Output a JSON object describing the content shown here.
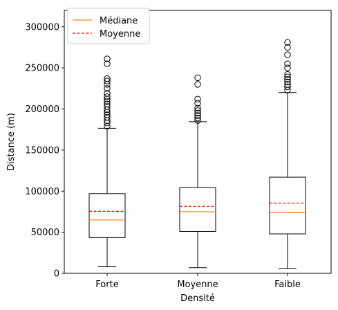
{
  "chart_data": {
    "type": "boxplot",
    "xlabel": "Densité",
    "ylabel": "Distance (m)",
    "ylim": [
      0,
      320000
    ],
    "yticks": [
      0,
      50000,
      100000,
      150000,
      200000,
      250000,
      300000
    ],
    "grid": false,
    "legend": {
      "placement": "top-left",
      "entries": [
        {
          "label": "Médiane",
          "style": "solid",
          "color": "#ff7f0e"
        },
        {
          "label": "Moyenne",
          "style": "dashed",
          "color": "#ff0000"
        }
      ]
    },
    "categories": [
      "Forte",
      "Moyenne",
      "Faible"
    ],
    "boxes": [
      {
        "category": "Forte",
        "whisker_low": 8000,
        "q1": 43500,
        "median": 65000,
        "mean": 75500,
        "q3": 97000,
        "whisker_high": 176500,
        "outliers": [
          179000,
          183000,
          186000,
          190000,
          193000,
          196000,
          199000,
          203000,
          206000,
          209000,
          212000,
          215000,
          219000,
          225000,
          230000,
          234000,
          237000,
          255000,
          261000
        ]
      },
      {
        "category": "Moyenne",
        "whisker_low": 7000,
        "q1": 51000,
        "median": 75000,
        "mean": 81500,
        "q3": 104500,
        "whisker_high": 184500,
        "outliers": [
          186000,
          189000,
          192000,
          195000,
          198000,
          201000,
          207000,
          212000,
          230000,
          238000
        ]
      },
      {
        "category": "Faible",
        "whisker_low": 5500,
        "q1": 48000,
        "median": 74000,
        "mean": 85500,
        "q3": 117000,
        "whisker_high": 220000,
        "outliers": [
          223000,
          227000,
          230000,
          233000,
          236000,
          239000,
          242000,
          250000,
          255000,
          266000,
          275000,
          281000
        ]
      }
    ],
    "colors": {
      "box": "#000000",
      "median": "#ff7f0e",
      "mean": "#ff0000"
    }
  }
}
